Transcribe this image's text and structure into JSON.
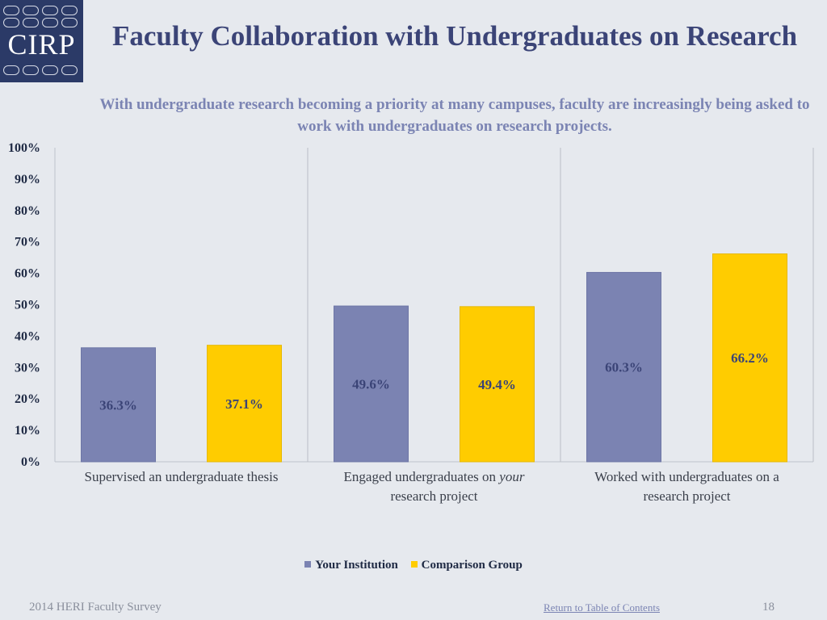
{
  "logo": {
    "text": "CIRP"
  },
  "title": "Faculty Collaboration with Undergraduates on Research",
  "subtitle": "With undergraduate research becoming a priority at many campuses, faculty are increasingly being asked to work with undergraduates on research projects.",
  "colors": {
    "institution": "#7b83b2",
    "comparison": "#ffcc00",
    "title": "#3b4477",
    "subtitle": "#7b84b3"
  },
  "chart_data": {
    "type": "bar",
    "title": "",
    "xlabel": "",
    "ylabel": "",
    "ylim": [
      0,
      100
    ],
    "yticks": [
      "0%",
      "10%",
      "20%",
      "30%",
      "40%",
      "50%",
      "60%",
      "70%",
      "80%",
      "90%",
      "100%"
    ],
    "categories": [
      [
        "Supervised an undergraduate thesis"
      ],
      [
        "Engaged undergraduates on ",
        "your",
        " research project"
      ],
      [
        "Worked with undergraduates on a research project"
      ]
    ],
    "series": [
      {
        "name": "Your Institution",
        "values": [
          36.3,
          49.6,
          60.3
        ],
        "labels": [
          "36.3%",
          "49.6%",
          "60.3%"
        ]
      },
      {
        "name": "Comparison Group",
        "values": [
          37.1,
          49.4,
          66.2
        ],
        "labels": [
          "37.1%",
          "49.4%",
          "66.2%"
        ]
      }
    ],
    "legend": "bottom-center",
    "grid": false
  },
  "footer": {
    "left": "2014 HERI Faculty Survey",
    "link": "Return to Table of Contents",
    "page": "18"
  }
}
